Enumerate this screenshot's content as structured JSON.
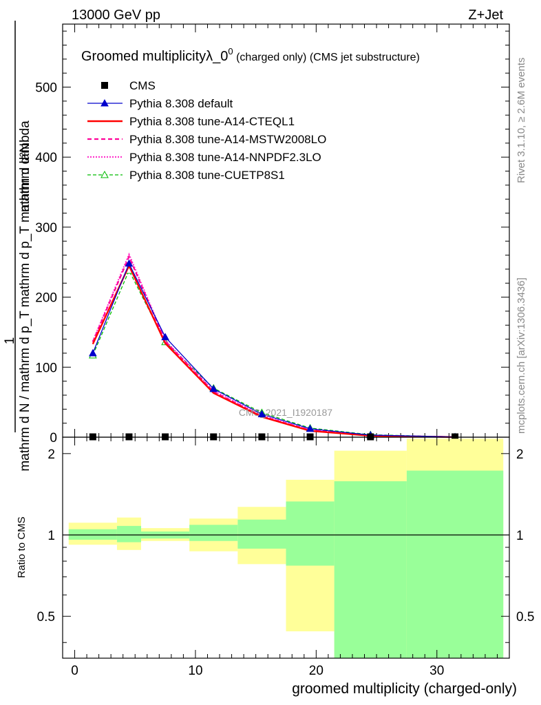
{
  "header": {
    "left": "13000 GeV pp",
    "right": "Z+Jet"
  },
  "side": {
    "rivet": "Rivet 3.1.10, ≥ 2.6M events",
    "mcplots": "mcplots.cern.ch [arXiv:1306.3436]"
  },
  "title": {
    "main": "Groomed multiplicityλ_0",
    "sup": "0",
    "rest": " (charged only) (CMS jet substructure)"
  },
  "watermark": "CMS_2021_I1920187",
  "axes": {
    "ylabel_num": "mathrm d²N",
    "ylabel_one": "1",
    "ylabel_den": "mathrm d N / mathrm d p_T mathrm d p_T mathrm d lambda",
    "xlabel": "groomed multiplicity (charged-only)",
    "ratio_ylabel": "Ratio to CMS",
    "yticks_main": [
      "0",
      "100",
      "200",
      "300",
      "400",
      "500"
    ],
    "yticks_ratio": [
      "0.5",
      "1",
      "2"
    ],
    "xticks": [
      "0",
      "10",
      "20",
      "30"
    ]
  },
  "legend": [
    {
      "label": "CMS",
      "color": "#000000"
    },
    {
      "label": "Pythia 8.308 default",
      "color": "#0000cc"
    },
    {
      "label": "Pythia 8.308 tune-A14-CTEQL1",
      "color": "#ff0000"
    },
    {
      "label": "Pythia 8.308 tune-A14-MSTW2008LO",
      "color": "#ff0099"
    },
    {
      "label": "Pythia 8.308 tune-A14-NNPDF2.3LO",
      "color": "#ff33cc"
    },
    {
      "label": "Pythia 8.308 tune-CUETP8S1",
      "color": "#00bb00"
    }
  ],
  "chart_data": {
    "type": "line",
    "xlim": [
      -1,
      36
    ],
    "ylim": [
      0,
      590
    ],
    "x": [
      1.5,
      4.5,
      7.5,
      11.5,
      15.5,
      19.5,
      24.5,
      31.5
    ],
    "series": [
      {
        "name": "CMS",
        "values": [
          0.5,
          0.5,
          0.5,
          0.5,
          0.5,
          0.5,
          0.5,
          0.5
        ]
      },
      {
        "name": "Pythia 8.308 default",
        "values": [
          120,
          248,
          143,
          69,
          33,
          12,
          3,
          0.3
        ]
      },
      {
        "name": "Pythia 8.308 tune-A14-CTEQL1",
        "values": [
          133,
          245,
          134,
          63,
          29,
          9,
          2,
          0.2
        ]
      },
      {
        "name": "Pythia 8.308 tune-A14-MSTW2008LO",
        "values": [
          136,
          258,
          137,
          65,
          30,
          10,
          2.3,
          0.2
        ]
      },
      {
        "name": "Pythia 8.308 tune-A14-NNPDF2.3LO",
        "values": [
          137,
          261,
          138,
          66,
          31,
          10,
          2.4,
          0.2
        ]
      },
      {
        "name": "Pythia 8.308 tune-CUETP8S1",
        "values": [
          117,
          238,
          136,
          70,
          35,
          13,
          3.5,
          0.4
        ]
      }
    ],
    "ratio": {
      "ylabel": "Ratio to CMS",
      "ylim": [
        0.35,
        2.3
      ],
      "log": true,
      "bins": [
        {
          "x": [
            -0.5,
            3.5
          ],
          "stat": [
            0.96,
            1.05
          ],
          "total": [
            0.92,
            1.11
          ]
        },
        {
          "x": [
            3.5,
            5.5
          ],
          "stat": [
            0.94,
            1.08
          ],
          "total": [
            0.88,
            1.16
          ]
        },
        {
          "x": [
            5.5,
            9.5
          ],
          "stat": [
            0.97,
            1.03
          ],
          "total": [
            0.95,
            1.06
          ]
        },
        {
          "x": [
            9.5,
            13.5
          ],
          "stat": [
            0.95,
            1.09
          ],
          "total": [
            0.87,
            1.15
          ]
        },
        {
          "x": [
            13.5,
            17.5
          ],
          "stat": [
            0.89,
            1.14
          ],
          "total": [
            0.78,
            1.27
          ]
        },
        {
          "x": [
            17.5,
            21.5
          ],
          "stat": [
            0.77,
            1.33
          ],
          "total": [
            0.44,
            1.6
          ]
        },
        {
          "x": [
            21.5,
            27.5
          ],
          "stat": [
            0.35,
            1.58
          ],
          "total": [
            0.35,
            2.05
          ]
        },
        {
          "x": [
            27.5,
            35.5
          ],
          "stat": [
            0.35,
            1.73
          ],
          "total": [
            0.35,
            2.27
          ]
        }
      ]
    }
  }
}
